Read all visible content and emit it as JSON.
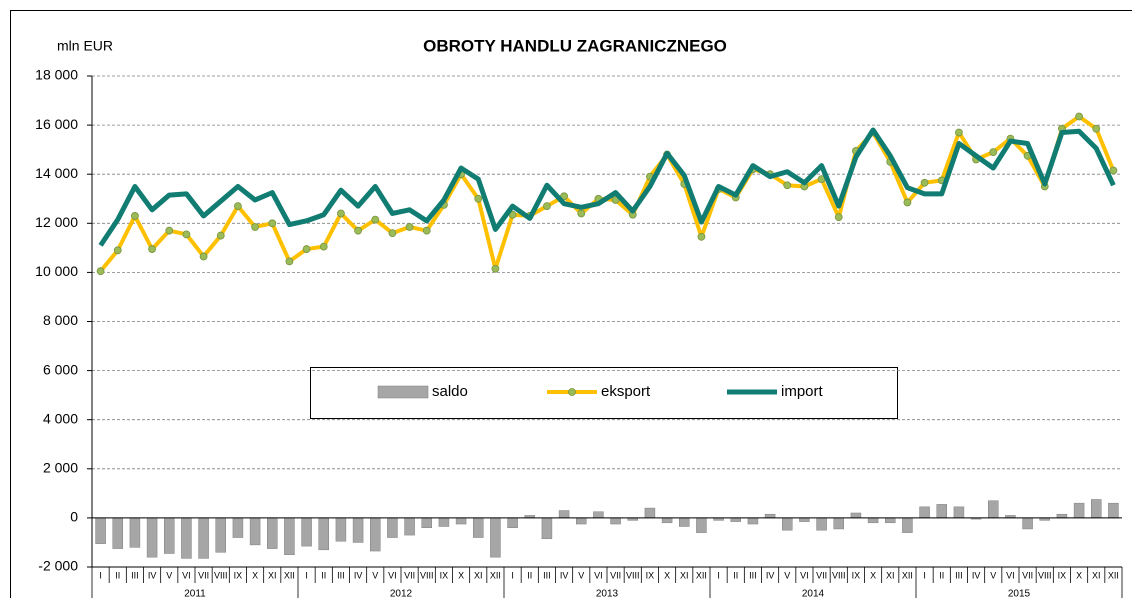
{
  "chart_data": {
    "type": "combo",
    "title": "OBROTY HANDLU ZAGRANICZNEGO",
    "y_label": "mln EUR",
    "categories": [
      "I",
      "II",
      "III",
      "IV",
      "V",
      "VI",
      "VII",
      "VIII",
      "IX",
      "X",
      "XI",
      "XII",
      "I",
      "II",
      "III",
      "IV",
      "V",
      "VI",
      "VII",
      "VIII",
      "IX",
      "X",
      "XI",
      "XII",
      "I",
      "II",
      "III",
      "IV",
      "V",
      "VI",
      "VII",
      "VIII",
      "IX",
      "X",
      "XI",
      "XII",
      "I",
      "II",
      "III",
      "IV",
      "V",
      "VI",
      "VII",
      "VIII",
      "IX",
      "X",
      "XI",
      "XII",
      "I",
      "II",
      "III",
      "IV",
      "V",
      "VI",
      "VII",
      "VIII",
      "IX",
      "X",
      "XI",
      "XII"
    ],
    "years": [
      "2011",
      "2012",
      "2013",
      "2014",
      "2015"
    ],
    "ylim": [
      -2000,
      18000
    ],
    "yticks": [
      {
        "value": -2000,
        "label": "-2 000"
      },
      0,
      {
        "value": 2000,
        "label": "2 000"
      },
      {
        "value": 4000,
        "label": "4 000"
      },
      {
        "value": 6000,
        "label": "6 000"
      },
      {
        "value": 8000,
        "label": "8 000"
      },
      {
        "value": 10000,
        "label": "10 000"
      },
      {
        "value": 12000,
        "label": "12 000"
      },
      {
        "value": 14000,
        "label": "14 000"
      },
      {
        "value": 16000,
        "label": "16 000"
      },
      {
        "value": 18000,
        "label": "18 000"
      }
    ],
    "grid": true,
    "series": [
      {
        "name": "saldo",
        "type": "bar",
        "color": "#a6a6a6",
        "values": [
          -1050,
          -1250,
          -1200,
          -1600,
          -1450,
          -1650,
          -1650,
          -1400,
          -800,
          -1100,
          -1250,
          -1500,
          -1150,
          -1300,
          -950,
          -1000,
          -1350,
          -800,
          -700,
          -400,
          -350,
          -250,
          -800,
          -1600,
          -400,
          100,
          -850,
          300,
          -250,
          250,
          -250,
          -100,
          400,
          -200,
          -350,
          -600,
          -100,
          -150,
          -250,
          150,
          -500,
          -150,
          -500,
          -450,
          200,
          -200,
          -200,
          -600,
          450,
          550,
          450,
          -50,
          700,
          100,
          -450,
          -100,
          150,
          600,
          750,
          600
        ]
      },
      {
        "name": "eksport",
        "type": "line",
        "color": "#ffc000",
        "marker_color": "#9bbb59",
        "values": [
          10050,
          10900,
          12300,
          10950,
          11700,
          11550,
          10650,
          11500,
          12700,
          11850,
          12000,
          10450,
          10950,
          11050,
          12400,
          11700,
          12150,
          11600,
          11850,
          11700,
          12750,
          14000,
          13000,
          10150,
          12350,
          12300,
          12700,
          13100,
          12400,
          13000,
          12950,
          12350,
          13900,
          14800,
          13600,
          11450,
          13400,
          13050,
          14200,
          14000,
          13550,
          13500,
          13800,
          12250,
          14950,
          15700,
          14500,
          12850,
          13650,
          13750,
          15700,
          14600,
          14900,
          15450,
          14750,
          13500,
          15850,
          16350,
          15850,
          14150
        ]
      },
      {
        "name": "import",
        "type": "line",
        "color": "#107c72",
        "values": [
          11100,
          12150,
          13500,
          12550,
          13150,
          13200,
          12300,
          12900,
          13500,
          12950,
          13250,
          11950,
          12100,
          12350,
          13350,
          12700,
          13500,
          12400,
          12550,
          12100,
          12950,
          14250,
          13800,
          11750,
          12700,
          12200,
          13550,
          12800,
          12650,
          12800,
          13250,
          12500,
          13500,
          14850,
          13950,
          12050,
          13500,
          13150,
          14350,
          13900,
          14100,
          13650,
          14350,
          12700,
          14700,
          15800,
          14750,
          13450,
          13200,
          13200,
          15250,
          14750,
          14250,
          15350,
          15250,
          13600,
          15700,
          15750,
          15050,
          13550
        ]
      }
    ]
  }
}
